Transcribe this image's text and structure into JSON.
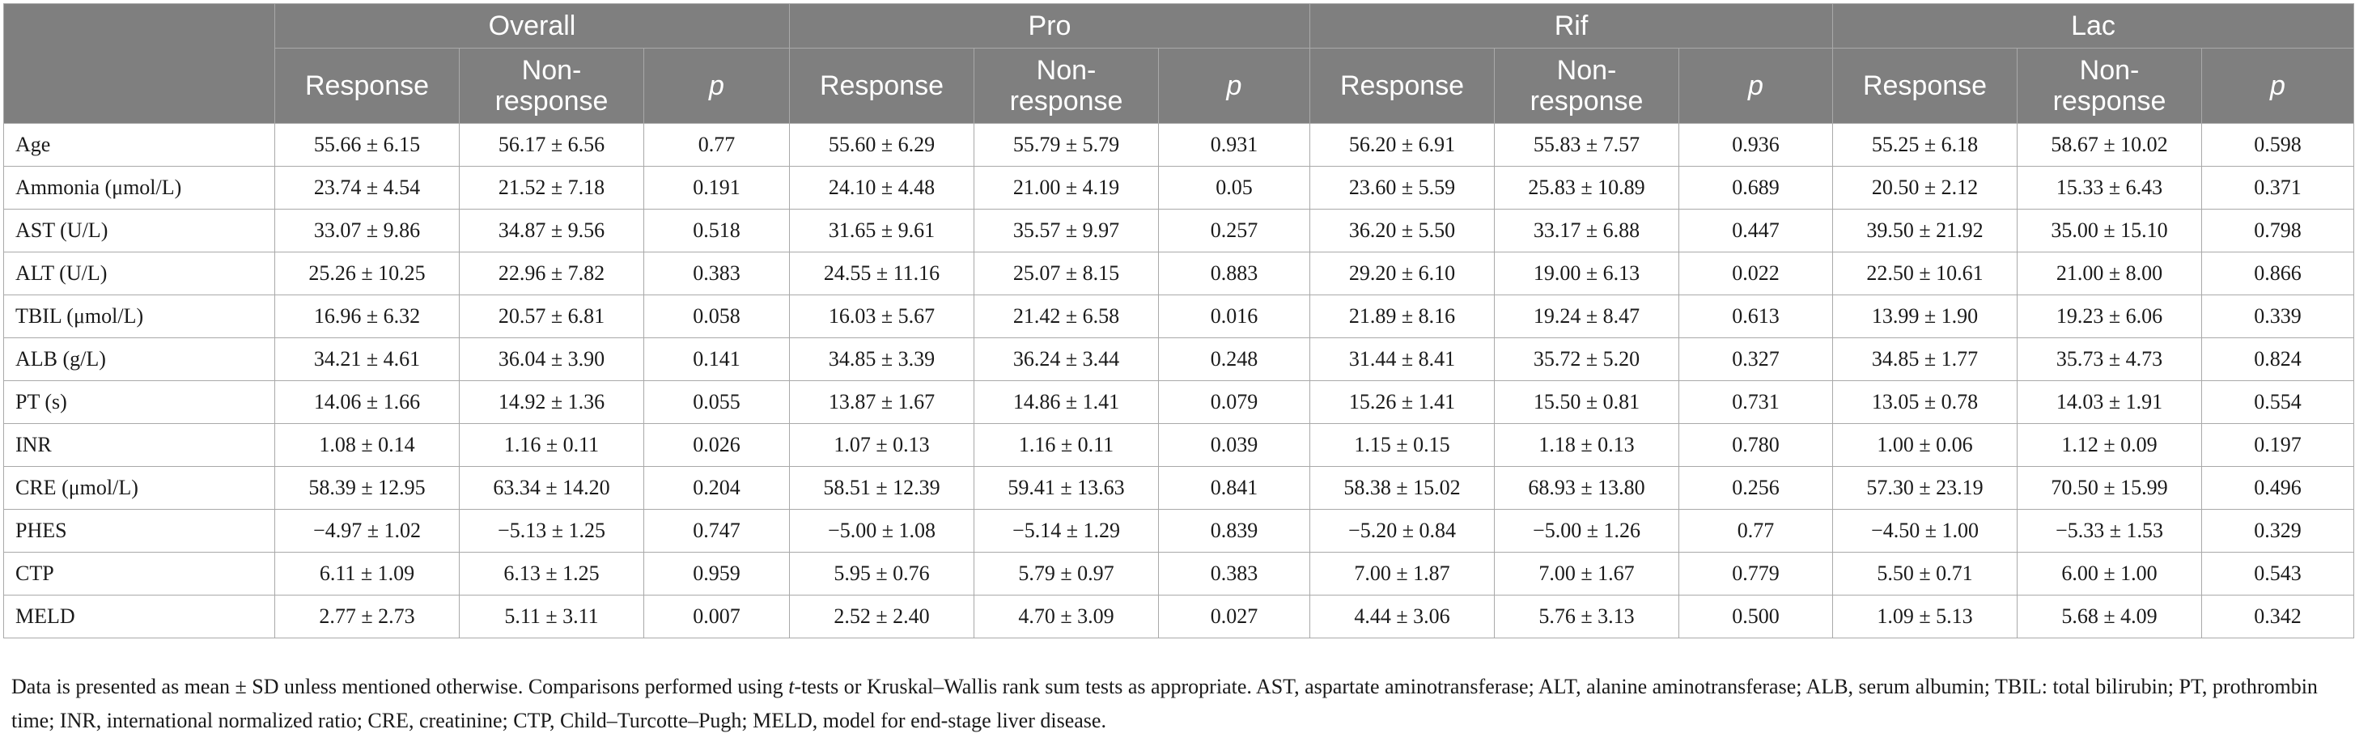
{
  "table": {
    "groups": [
      "Overall",
      "Pro",
      "Rif",
      "Lac"
    ],
    "subheaders": [
      "Response",
      "Non-\nresponse",
      "p"
    ],
    "rows": [
      {
        "label": "Age",
        "cells": [
          "55.66 ± 6.15",
          "56.17 ± 6.56",
          "0.77",
          "55.60 ± 6.29",
          "55.79 ± 5.79",
          "0.931",
          "56.20 ± 6.91",
          "55.83 ± 7.57",
          "0.936",
          "55.25 ± 6.18",
          "58.67 ± 10.02",
          "0.598"
        ]
      },
      {
        "label": "Ammonia (μmol/L)",
        "cells": [
          "23.74 ± 4.54",
          "21.52 ± 7.18",
          "0.191",
          "24.10 ± 4.48",
          "21.00 ± 4.19",
          "0.05",
          "23.60 ± 5.59",
          "25.83 ± 10.89",
          "0.689",
          "20.50 ± 2.12",
          "15.33 ± 6.43",
          "0.371"
        ]
      },
      {
        "label": "AST (U/L)",
        "cells": [
          "33.07 ± 9.86",
          "34.87 ± 9.56",
          "0.518",
          "31.65 ± 9.61",
          "35.57 ± 9.97",
          "0.257",
          "36.20 ± 5.50",
          "33.17 ± 6.88",
          "0.447",
          "39.50 ± 21.92",
          "35.00 ± 15.10",
          "0.798"
        ]
      },
      {
        "label": "ALT (U/L)",
        "cells": [
          "25.26 ± 10.25",
          "22.96 ± 7.82",
          "0.383",
          "24.55 ± 11.16",
          "25.07 ± 8.15",
          "0.883",
          "29.20 ± 6.10",
          "19.00 ± 6.13",
          "0.022",
          "22.50 ± 10.61",
          "21.00 ± 8.00",
          "0.866"
        ]
      },
      {
        "label": "TBIL (μmol/L)",
        "cells": [
          "16.96 ± 6.32",
          "20.57 ± 6.81",
          "0.058",
          "16.03 ± 5.67",
          "21.42 ± 6.58",
          "0.016",
          "21.89 ± 8.16",
          "19.24 ± 8.47",
          "0.613",
          "13.99 ± 1.90",
          "19.23 ± 6.06",
          "0.339"
        ]
      },
      {
        "label": "ALB (g/L)",
        "cells": [
          "34.21 ± 4.61",
          "36.04 ± 3.90",
          "0.141",
          "34.85 ± 3.39",
          "36.24 ± 3.44",
          "0.248",
          "31.44 ± 8.41",
          "35.72 ± 5.20",
          "0.327",
          "34.85 ± 1.77",
          "35.73 ± 4.73",
          "0.824"
        ]
      },
      {
        "label": "PT (s)",
        "cells": [
          "14.06 ± 1.66",
          "14.92 ± 1.36",
          "0.055",
          "13.87 ± 1.67",
          "14.86 ± 1.41",
          "0.079",
          "15.26 ± 1.41",
          "15.50 ± 0.81",
          "0.731",
          "13.05 ± 0.78",
          "14.03 ± 1.91",
          "0.554"
        ]
      },
      {
        "label": "INR",
        "cells": [
          "1.08 ± 0.14",
          "1.16 ± 0.11",
          "0.026",
          "1.07 ± 0.13",
          "1.16 ± 0.11",
          "0.039",
          "1.15 ± 0.15",
          "1.18 ± 0.13",
          "0.780",
          "1.00 ± 0.06",
          "1.12 ± 0.09",
          "0.197"
        ]
      },
      {
        "label": "CRE (μmol/L)",
        "cells": [
          "58.39 ± 12.95",
          "63.34 ± 14.20",
          "0.204",
          "58.51 ± 12.39",
          "59.41 ± 13.63",
          "0.841",
          "58.38 ± 15.02",
          "68.93 ± 13.80",
          "0.256",
          "57.30 ± 23.19",
          "70.50 ± 15.99",
          "0.496"
        ]
      },
      {
        "label": "PHES",
        "cells": [
          "−4.97 ± 1.02",
          "−5.13 ± 1.25",
          "0.747",
          "−5.00 ± 1.08",
          "−5.14 ± 1.29",
          "0.839",
          "−5.20 ± 0.84",
          "−5.00 ± 1.26",
          "0.77",
          "−4.50 ± 1.00",
          "−5.33 ± 1.53",
          "0.329"
        ]
      },
      {
        "label": "CTP",
        "cells": [
          "6.11 ± 1.09",
          "6.13 ± 1.25",
          "0.959",
          "5.95 ± 0.76",
          "5.79 ± 0.97",
          "0.383",
          "7.00 ± 1.87",
          "7.00 ± 1.67",
          "0.779",
          "5.50 ± 0.71",
          "6.00 ± 1.00",
          "0.543"
        ]
      },
      {
        "label": "MELD",
        "cells": [
          "2.77 ± 2.73",
          "5.11 ± 3.11",
          "0.007",
          "2.52 ± 2.40",
          "4.70 ± 3.09",
          "0.027",
          "4.44 ± 3.06",
          "5.76 ± 3.13",
          "0.500",
          "1.09 ± 5.13",
          "5.68 ± 4.09",
          "0.342"
        ]
      }
    ]
  },
  "footnote": {
    "before_italic": "Data is presented as mean ± SD unless mentioned otherwise. Comparisons performed using ",
    "italic": "t",
    "after_italic": "-tests or Kruskal–Wallis rank sum tests as appropriate. AST, aspartate aminotransferase; ALT, alanine aminotransferase; ALB, serum albumin; TBIL: total bilirubin; PT, prothrombin time; INR, international normalized ratio; CRE, creatinine; CTP, Child–Turcotte–Pugh; MELD, model for end-stage liver disease."
  },
  "colors": {
    "header_bg": "#7f7f7f",
    "header_text": "#ffffff",
    "border": "#a9a9a9",
    "text": "#1a1a1a"
  }
}
